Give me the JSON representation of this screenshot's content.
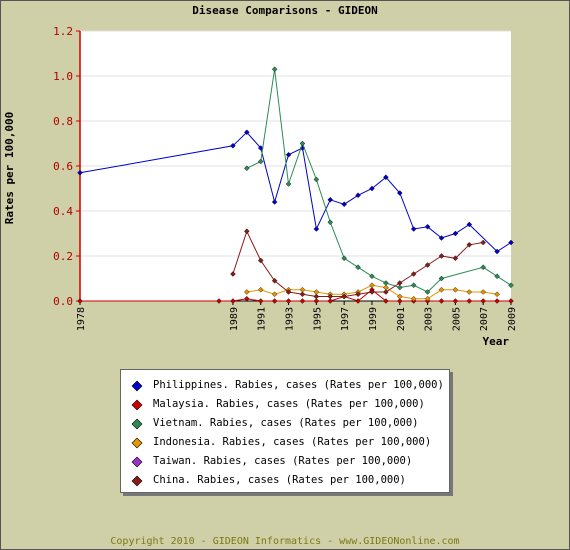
{
  "chart_data": {
    "type": "line",
    "title": "Disease Comparisons - GIDEON",
    "ylabel": "Rates per 100,000",
    "xlabel": "Year",
    "ylim": [
      0,
      1.2
    ],
    "yticks": [
      "0.0",
      "0.2",
      "0.4",
      "0.6",
      "0.8",
      "1.0",
      "1.2"
    ],
    "xlim": [
      1978,
      2009
    ],
    "xticks": [
      "1978",
      "1989",
      "1991",
      "1993",
      "1995",
      "1997",
      "1999",
      "2001",
      "2003",
      "2005",
      "2007",
      "2009"
    ],
    "grid": true,
    "legend_position": "bottom",
    "series": [
      {
        "name": "Philippines. Rabies, cases (Rates per 100,000)",
        "color": "#0000cc",
        "points": [
          [
            1978,
            0.57
          ],
          [
            1989,
            0.69
          ],
          [
            1990,
            0.75
          ],
          [
            1991,
            0.68
          ],
          [
            1992,
            0.44
          ],
          [
            1993,
            0.65
          ],
          [
            1994,
            0.68
          ],
          [
            1995,
            0.32
          ],
          [
            1996,
            0.45
          ],
          [
            1997,
            0.43
          ],
          [
            1998,
            0.47
          ],
          [
            1999,
            0.5
          ],
          [
            2000,
            0.55
          ],
          [
            2001,
            0.48
          ],
          [
            2002,
            0.32
          ],
          [
            2003,
            0.33
          ],
          [
            2004,
            0.28
          ],
          [
            2005,
            0.3
          ],
          [
            2006,
            0.34
          ],
          [
            2008,
            0.22
          ],
          [
            2009,
            0.26
          ]
        ]
      },
      {
        "name": "Malaysia. Rabies, cases (Rates per 100,000)",
        "color": "#cc0000",
        "points": [
          [
            1978,
            0.0
          ],
          [
            1988,
            0.0
          ],
          [
            1989,
            0.0
          ],
          [
            1990,
            0.01
          ],
          [
            1991,
            0.0
          ],
          [
            1992,
            0.0
          ],
          [
            1993,
            0.0
          ],
          [
            1994,
            0.0
          ],
          [
            1995,
            0.0
          ],
          [
            1996,
            0.0
          ],
          [
            1997,
            0.02
          ],
          [
            1998,
            0.0
          ],
          [
            1999,
            0.05
          ],
          [
            2000,
            0.0
          ],
          [
            2001,
            0.0
          ],
          [
            2002,
            0.0
          ],
          [
            2003,
            0.0
          ],
          [
            2004,
            0.0
          ],
          [
            2005,
            0.0
          ],
          [
            2006,
            0.0
          ],
          [
            2007,
            0.0
          ],
          [
            2008,
            0.0
          ],
          [
            2009,
            0.0
          ]
        ]
      },
      {
        "name": "Vietnam. Rabies, cases (Rates per 100,000)",
        "color": "#2e8b57",
        "points": [
          [
            1990,
            0.59
          ],
          [
            1991,
            0.62
          ],
          [
            1992,
            1.03
          ],
          [
            1993,
            0.52
          ],
          [
            1994,
            0.7
          ],
          [
            1995,
            0.54
          ],
          [
            1996,
            0.35
          ],
          [
            1997,
            0.19
          ],
          [
            1998,
            0.15
          ],
          [
            1999,
            0.11
          ],
          [
            2000,
            0.08
          ],
          [
            2001,
            0.06
          ],
          [
            2002,
            0.07
          ],
          [
            2003,
            0.04
          ],
          [
            2004,
            0.1
          ],
          [
            2007,
            0.15
          ],
          [
            2008,
            0.11
          ],
          [
            2009,
            0.07
          ]
        ]
      },
      {
        "name": "Indonesia. Rabies, cases (Rates per 100,000)",
        "color": "#e69500",
        "points": [
          [
            1990,
            0.04
          ],
          [
            1991,
            0.05
          ],
          [
            1992,
            0.03
          ],
          [
            1993,
            0.05
          ],
          [
            1994,
            0.05
          ],
          [
            1995,
            0.04
          ],
          [
            1996,
            0.03
          ],
          [
            1997,
            0.03
          ],
          [
            1998,
            0.04
          ],
          [
            1999,
            0.07
          ],
          [
            2000,
            0.06
          ],
          [
            2001,
            0.02
          ],
          [
            2002,
            0.01
          ],
          [
            2003,
            0.01
          ],
          [
            2004,
            0.05
          ],
          [
            2005,
            0.05
          ],
          [
            2006,
            0.04
          ],
          [
            2007,
            0.04
          ],
          [
            2008,
            0.03
          ]
        ]
      },
      {
        "name": "Taiwan. Rabies, cases (Rates per 100,000)",
        "color": "#9933cc",
        "points": []
      },
      {
        "name": "China. Rabies, cases (Rates per 100,000)",
        "color": "#8b1a1a",
        "points": [
          [
            1989,
            0.12
          ],
          [
            1990,
            0.31
          ],
          [
            1991,
            0.18
          ],
          [
            1992,
            0.09
          ],
          [
            1993,
            0.04
          ],
          [
            1994,
            0.03
          ],
          [
            1995,
            0.02
          ],
          [
            1996,
            0.02
          ],
          [
            1997,
            0.02
          ],
          [
            1998,
            0.03
          ],
          [
            1999,
            0.04
          ],
          [
            2000,
            0.04
          ],
          [
            2001,
            0.08
          ],
          [
            2002,
            0.12
          ],
          [
            2003,
            0.16
          ],
          [
            2004,
            0.2
          ],
          [
            2005,
            0.19
          ],
          [
            2006,
            0.25
          ],
          [
            2007,
            0.26
          ]
        ]
      }
    ]
  },
  "footer": {
    "copyright": "Copyright 2010 - GIDEON Informatics - www.GIDEONonline.com"
  }
}
